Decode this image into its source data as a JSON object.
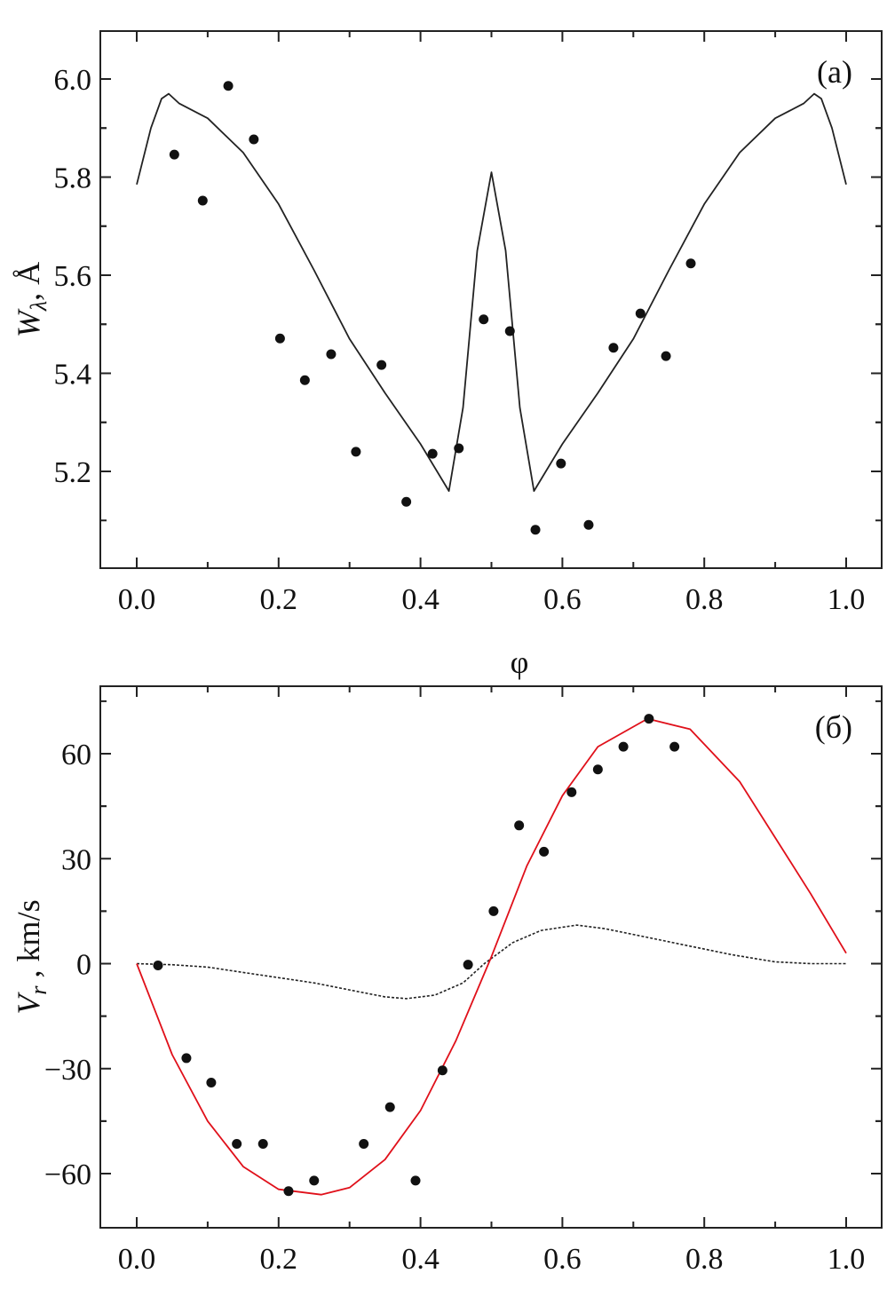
{
  "chart_data": [
    {
      "type": "scatter",
      "panel_label": "(a)",
      "xlabel": "φ",
      "ylabel": "W_λ, Å",
      "ylabel_main": "W",
      "ylabel_sub": "λ",
      "ylabel_unit": ", Å",
      "xlim": [
        -0.05,
        1.05
      ],
      "ylim": [
        5.02,
        6.1
      ],
      "xticks": [
        0.0,
        0.2,
        0.4,
        0.6,
        0.8,
        1.0
      ],
      "xtick_labels": [
        "0.0",
        "0.2",
        "0.4",
        "0.6",
        "0.8",
        "1.0"
      ],
      "yticks": [
        5.2,
        5.4,
        5.6,
        5.8,
        6.0
      ],
      "ytick_labels": [
        "5.2",
        "5.4",
        "5.6",
        "5.8",
        "6.0"
      ],
      "points": {
        "x": [
          0.053,
          0.093,
          0.129,
          0.165,
          0.202,
          0.237,
          0.274,
          0.309,
          0.345,
          0.38,
          0.417,
          0.454,
          0.489,
          0.526,
          0.562,
          0.598,
          0.637,
          0.672,
          0.71,
          0.746,
          0.781
        ],
        "y": [
          5.846,
          5.752,
          5.986,
          5.877,
          5.471,
          5.386,
          5.439,
          5.24,
          5.417,
          5.138,
          5.236,
          5.247,
          5.51,
          5.486,
          5.081,
          5.216,
          5.091,
          5.452,
          5.522,
          5.435,
          5.624
        ]
      },
      "model_curve": {
        "x": [
          0,
          0.02,
          0.035,
          0.045,
          0.06,
          0.1,
          0.15,
          0.2,
          0.25,
          0.3,
          0.35,
          0.4,
          0.44,
          0.46,
          0.48,
          0.5,
          0.52,
          0.54,
          0.56,
          0.6,
          0.65,
          0.7,
          0.75,
          0.8,
          0.85,
          0.9,
          0.94,
          0.955,
          0.965,
          0.98,
          1.0
        ],
        "y": [
          5.785,
          5.9,
          5.96,
          5.97,
          5.95,
          5.92,
          5.85,
          5.745,
          5.61,
          5.47,
          5.36,
          5.256,
          5.16,
          5.33,
          5.65,
          5.81,
          5.65,
          5.33,
          5.16,
          5.256,
          5.36,
          5.47,
          5.61,
          5.745,
          5.85,
          5.92,
          5.95,
          5.97,
          5.96,
          5.9,
          5.785
        ],
        "color": "#222222"
      }
    },
    {
      "type": "scatter",
      "panel_label": "(б)",
      "xlabel": "",
      "ylabel": "V_r , km/s",
      "ylabel_main": "V",
      "ylabel_sub": "r",
      "ylabel_unit": " , km/s",
      "xlim": [
        -0.05,
        1.05
      ],
      "ylim": [
        -75,
        79
      ],
      "xticks": [
        0.0,
        0.2,
        0.4,
        0.6,
        0.8,
        1.0
      ],
      "xtick_labels": [
        "0.0",
        "0.2",
        "0.4",
        "0.6",
        "0.8",
        "1.0"
      ],
      "yticks": [
        -60,
        -30,
        0,
        30,
        60
      ],
      "ytick_labels": [
        "−60",
        "−30",
        "0",
        "30",
        "60"
      ],
      "points": {
        "x": [
          0.03,
          0.07,
          0.105,
          0.141,
          0.178,
          0.214,
          0.25,
          0.32,
          0.357,
          0.393,
          0.431,
          0.467,
          0.503,
          0.539,
          0.574,
          0.613,
          0.65,
          0.686,
          0.722,
          0.758
        ],
        "y": [
          -0.5,
          -27,
          -34,
          -51.5,
          -51.5,
          -65,
          -62,
          -51.5,
          -41,
          -62,
          -30.5,
          -0.3,
          15,
          39.5,
          32,
          49,
          55.5,
          62,
          70,
          62
        ]
      },
      "model_curve": {
        "x": [
          0,
          0.05,
          0.1,
          0.15,
          0.2,
          0.26,
          0.3,
          0.35,
          0.4,
          0.45,
          0.5,
          0.55,
          0.6,
          0.65,
          0.72,
          0.78,
          0.85,
          0.9,
          0.95,
          1.0
        ],
        "y": [
          0,
          -26,
          -45,
          -58,
          -64.5,
          -66,
          -64,
          -56,
          -42,
          -22,
          2,
          28,
          48,
          62,
          70,
          67,
          52,
          36,
          20,
          3
        ],
        "color": "#e0101a"
      },
      "secondary_curve": {
        "x": [
          0,
          0.05,
          0.1,
          0.15,
          0.2,
          0.25,
          0.3,
          0.35,
          0.38,
          0.42,
          0.46,
          0.49,
          0.53,
          0.57,
          0.62,
          0.66,
          0.72,
          0.78,
          0.84,
          0.9,
          0.95,
          1.0
        ],
        "y": [
          0,
          -0.3,
          -1,
          -2.5,
          -4,
          -5.5,
          -7.5,
          -9.5,
          -10,
          -9,
          -5.5,
          0,
          6,
          9.5,
          11,
          10,
          7.5,
          5,
          2.5,
          0.5,
          0,
          0
        ],
        "style": "dotted",
        "color": "#222222"
      }
    }
  ]
}
